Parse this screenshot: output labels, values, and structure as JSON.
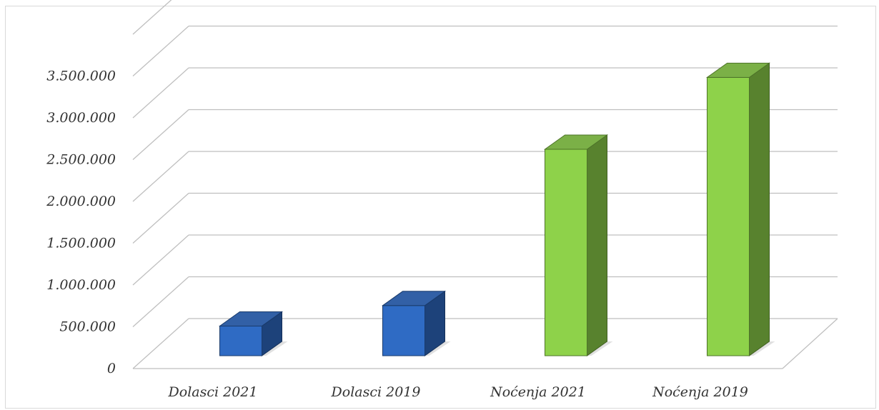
{
  "chart_data": {
    "type": "bar",
    "categories": [
      "Dolasci 2021",
      "Dolasci 2019",
      "Noćenja 2021",
      "Noćenja 2019"
    ],
    "values": [
      355000,
      600000,
      2470000,
      3330000
    ],
    "bar_colors": [
      "#2f6bc4",
      "#2f6bc4",
      "#8ed24a",
      "#8ed24a"
    ],
    "ylim": [
      0,
      4000000
    ],
    "yticks": [
      0,
      500000,
      1000000,
      1500000,
      2000000,
      2500000,
      3000000,
      3500000
    ],
    "ytick_labels": [
      "0",
      "500.000",
      "1.000.000",
      "1.500.000",
      "2.000.000",
      "2.500.000",
      "3.000.000",
      "3.500.000"
    ],
    "grid": true,
    "title": "",
    "xlabel": "",
    "ylabel": ""
  }
}
